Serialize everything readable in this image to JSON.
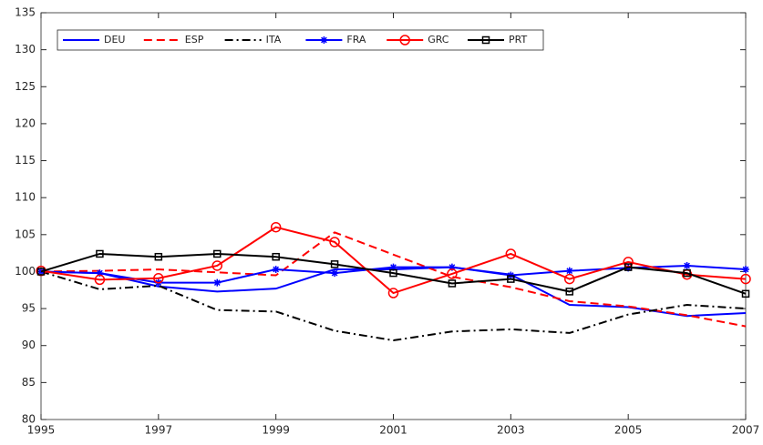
{
  "chart_data": {
    "type": "line",
    "x": [
      1995,
      1996,
      1997,
      1998,
      1999,
      2000,
      2001,
      2002,
      2003,
      2004,
      2005,
      2006,
      2007
    ],
    "xlim": [
      1995,
      2007
    ],
    "xticks": [
      1995,
      1997,
      1999,
      2001,
      2003,
      2005,
      2007
    ],
    "ylim": [
      80,
      135
    ],
    "yticks": [
      80,
      85,
      90,
      95,
      100,
      105,
      110,
      115,
      120,
      125,
      130,
      135
    ],
    "grid": false,
    "legend": "upper left",
    "series": [
      {
        "name": "DEU",
        "color": "#0000ff",
        "line_style": "solid",
        "marker": "none",
        "values": [
          100,
          99.8,
          98,
          97.3,
          97.7,
          100.3,
          100.3,
          100.6,
          99.6,
          95.5,
          95.2,
          94,
          94.4
        ]
      },
      {
        "name": "ESP",
        "color": "#ff0000",
        "line_style": "dashed",
        "marker": "none",
        "values": [
          100,
          100.1,
          100.3,
          99.9,
          99.5,
          105.3,
          102.3,
          99.3,
          97.9,
          96,
          95.3,
          94.1,
          92.6
        ]
      },
      {
        "name": "ITA",
        "color": "#000000",
        "line_style": "dashdot",
        "marker": "none",
        "values": [
          100,
          97.6,
          98.1,
          94.8,
          94.6,
          92,
          90.7,
          91.9,
          92.2,
          91.7,
          94.2,
          95.5,
          95
        ]
      },
      {
        "name": "FRA",
        "color": "#0000ff",
        "line_style": "solid",
        "marker": "star",
        "values": [
          100,
          99.8,
          98.5,
          98.5,
          100.3,
          99.8,
          100.6,
          100.6,
          99.5,
          100.1,
          100.5,
          100.8,
          100.3
        ]
      },
      {
        "name": "GRC",
        "color": "#ff0000",
        "line_style": "solid",
        "marker": "circle",
        "values": [
          100.1,
          98.9,
          99.1,
          100.8,
          106,
          104,
          97.1,
          99.7,
          102.4,
          99,
          101.3,
          99.6,
          99
        ]
      },
      {
        "name": "PRT",
        "color": "#000000",
        "line_style": "solid",
        "marker": "square",
        "values": [
          100,
          102.4,
          102,
          102.4,
          102,
          101,
          99.8,
          98.4,
          99,
          97.3,
          100.6,
          99.8,
          97
        ]
      }
    ]
  }
}
